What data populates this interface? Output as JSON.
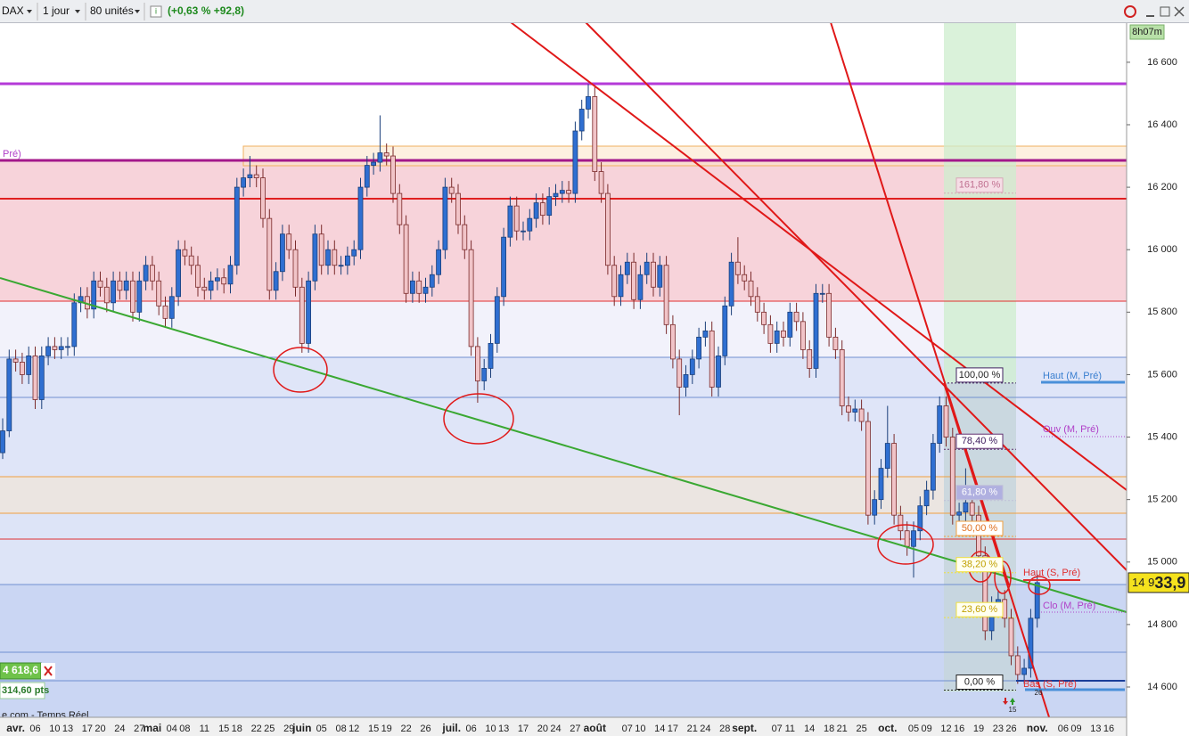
{
  "toolbar": {
    "instrument": "DAX",
    "period": "1 jour",
    "units": "80 unités",
    "change": "(+0,63 % +92,8)"
  },
  "panel": {
    "left_label": "Pré)",
    "price_box": "4 618,6",
    "pts": "314,60 pts",
    "source": "e.com - Temps Réel",
    "timer": "8h07m",
    "markers": [
      "15",
      "26"
    ]
  },
  "chart_data": {
    "type": "candlestick",
    "up_color": "#2f6fd1",
    "down_color": "#f1c4c8",
    "ylim": [
      14503,
      16728
    ],
    "yticks": [
      {
        "value": 14600,
        "label": "14 600"
      },
      {
        "value": 14800,
        "label": "14 800"
      },
      {
        "value": 15000,
        "label": "15 000"
      },
      {
        "value": 15200,
        "label": "15 200"
      },
      {
        "value": 15400,
        "label": "15 400"
      },
      {
        "value": 15600,
        "label": "15 600"
      },
      {
        "value": 15800,
        "label": "15 800"
      },
      {
        "value": 16000,
        "label": "16 000"
      },
      {
        "value": 16200,
        "label": "16 200"
      },
      {
        "value": 16400,
        "label": "16 400"
      },
      {
        "value": 16600,
        "label": "16 600"
      }
    ],
    "last_price": 14933.9,
    "last_price_label": [
      "14 9",
      "33,9"
    ],
    "fib_levels": [
      {
        "label": "161,80 %",
        "value": 16181
      },
      {
        "label": "100,00 %",
        "value": 15573
      },
      {
        "label": "78,40 %",
        "value": 15361
      },
      {
        "label": "61,80 %",
        "value": 15197
      },
      {
        "label": "50,00 %",
        "value": 15082
      },
      {
        "label": "38,20 %",
        "value": 14966
      },
      {
        "label": "23,60 %",
        "value": 14822
      },
      {
        "label": "0,00 %",
        "value": 14590
      }
    ],
    "level_labels": [
      {
        "text": "Haut (M, Pré)",
        "color": "#3a7fd0"
      },
      {
        "text": "Ouv (M, Pré)",
        "color": "#b040c8"
      },
      {
        "text": "Haut (S, Pré)",
        "color": "#e03030"
      },
      {
        "text": "Clo (M, Pré)",
        "color": "#b040c8"
      },
      {
        "text": "Bas (S, Pré)",
        "color": "#e03030"
      }
    ],
    "categories": [
      null,
      null,
      "avr.",
      null,
      null,
      "06",
      null,
      null,
      "10",
      null,
      "13",
      null,
      null,
      "17",
      null,
      "20",
      null,
      null,
      "24",
      null,
      null,
      "27",
      null,
      "mai",
      null,
      null,
      "04",
      null,
      "08",
      null,
      null,
      "11",
      null,
      null,
      "15",
      null,
      "18",
      null,
      null,
      "22",
      null,
      "25",
      null,
      null,
      "29",
      null,
      "juin",
      null,
      null,
      "05",
      null,
      null,
      "08",
      null,
      "12",
      null,
      null,
      "15",
      null,
      "19",
      null,
      null,
      "22",
      null,
      null,
      "26",
      null,
      null,
      null,
      "juil.",
      null,
      null,
      "06",
      null,
      null,
      "10",
      null,
      "13",
      null,
      null,
      "17",
      null,
      null,
      "20",
      null,
      "24",
      null,
      null,
      "27",
      null,
      null,
      "août",
      null,
      null,
      null,
      null,
      "07",
      null,
      "10",
      null,
      null,
      "14",
      null,
      "17",
      null,
      null,
      "21",
      null,
      "24",
      null,
      null,
      "28",
      null,
      null,
      "sept.",
      null,
      null,
      null,
      null,
      "07",
      null,
      "11",
      null,
      null,
      "14",
      null,
      null,
      "18",
      null,
      "21",
      null,
      null,
      "25",
      null,
      null,
      null,
      "oct.",
      null,
      null,
      null,
      "05",
      null,
      "09",
      null,
      null,
      "12",
      null,
      "16",
      null,
      null,
      "19",
      null,
      null,
      "23",
      null,
      "26",
      null,
      null,
      null,
      "nov.",
      null,
      null,
      null,
      "06",
      null,
      "09",
      null,
      null,
      "13",
      null,
      "16",
      null
    ],
    "candles": [
      [
        15350,
        15460,
        15330,
        15420
      ],
      [
        15420,
        15680,
        15400,
        15650
      ],
      [
        15650,
        15680,
        15610,
        15640
      ],
      [
        15640,
        15670,
        15570,
        15600
      ],
      [
        15600,
        15690,
        15570,
        15660
      ],
      [
        15660,
        15690,
        15490,
        15520
      ],
      [
        15520,
        15690,
        15490,
        15660
      ],
      [
        15660,
        15720,
        15630,
        15690
      ],
      [
        15690,
        15720,
        15650,
        15680
      ],
      [
        15680,
        15720,
        15650,
        15690
      ],
      [
        15690,
        15720,
        15660,
        15690
      ],
      [
        15690,
        15860,
        15660,
        15830
      ],
      [
        15830,
        15880,
        15800,
        15850
      ],
      [
        15850,
        15880,
        15780,
        15810
      ],
      [
        15810,
        15930,
        15780,
        15900
      ],
      [
        15900,
        15930,
        15850,
        15880
      ],
      [
        15880,
        15910,
        15800,
        15830
      ],
      [
        15830,
        15930,
        15800,
        15900
      ],
      [
        15900,
        15930,
        15840,
        15870
      ],
      [
        15870,
        15930,
        15840,
        15900
      ],
      [
        15900,
        15930,
        15770,
        15800
      ],
      [
        15800,
        15930,
        15770,
        15900
      ],
      [
        15900,
        15980,
        15870,
        15950
      ],
      [
        15950,
        15980,
        15870,
        15900
      ],
      [
        15900,
        15930,
        15790,
        15820
      ],
      [
        15820,
        15850,
        15750,
        15780
      ],
      [
        15780,
        15880,
        15750,
        15850
      ],
      [
        15850,
        16030,
        15820,
        16000
      ],
      [
        16000,
        16030,
        15950,
        15980
      ],
      [
        15980,
        16010,
        15920,
        15950
      ],
      [
        15950,
        15980,
        15850,
        15880
      ],
      [
        15880,
        15910,
        15840,
        15870
      ],
      [
        15870,
        15930,
        15840,
        15900
      ],
      [
        15900,
        15940,
        15870,
        15910
      ],
      [
        15910,
        15940,
        15860,
        15890
      ],
      [
        15890,
        15980,
        15860,
        15950
      ],
      [
        15950,
        16230,
        15920,
        16200
      ],
      [
        16200,
        16260,
        16170,
        16230
      ],
      [
        16230,
        16300,
        16200,
        16240
      ],
      [
        16240,
        16270,
        16200,
        16230
      ],
      [
        16230,
        16260,
        16070,
        16100
      ],
      [
        16100,
        16130,
        15840,
        15870
      ],
      [
        15870,
        15960,
        15840,
        15930
      ],
      [
        15930,
        16080,
        15900,
        16050
      ],
      [
        16050,
        16080,
        15970,
        16000
      ],
      [
        16000,
        16030,
        15850,
        15880
      ],
      [
        15880,
        15910,
        15670,
        15700
      ],
      [
        15700,
        15930,
        15670,
        15900
      ],
      [
        15900,
        16080,
        15870,
        16050
      ],
      [
        16050,
        16080,
        15920,
        15950
      ],
      [
        15950,
        16030,
        15920,
        16000
      ],
      [
        16000,
        16030,
        15920,
        15950
      ],
      [
        15950,
        15980,
        15920,
        15950
      ],
      [
        15950,
        16010,
        15920,
        15980
      ],
      [
        15980,
        16030,
        15950,
        16000
      ],
      [
        16000,
        16230,
        15970,
        16200
      ],
      [
        16200,
        16300,
        16170,
        16270
      ],
      [
        16270,
        16310,
        16240,
        16280
      ],
      [
        16280,
        16430,
        16250,
        16310
      ],
      [
        16310,
        16340,
        16270,
        16300
      ],
      [
        16300,
        16330,
        16150,
        16180
      ],
      [
        16180,
        16210,
        16050,
        16080
      ],
      [
        16080,
        16110,
        15830,
        15860
      ],
      [
        15860,
        15930,
        15830,
        15900
      ],
      [
        15900,
        15930,
        15830,
        15860
      ],
      [
        15860,
        15910,
        15830,
        15880
      ],
      [
        15880,
        15950,
        15850,
        15920
      ],
      [
        15920,
        16030,
        15890,
        16000
      ],
      [
        16000,
        16230,
        15970,
        16200
      ],
      [
        16200,
        16230,
        16150,
        16180
      ],
      [
        16180,
        16210,
        16050,
        16080
      ],
      [
        16080,
        16110,
        15970,
        16000
      ],
      [
        16000,
        16030,
        15660,
        15690
      ],
      [
        15690,
        15720,
        15510,
        15580
      ],
      [
        15580,
        15650,
        15550,
        15620
      ],
      [
        15620,
        15730,
        15590,
        15700
      ],
      [
        15700,
        15880,
        15670,
        15850
      ],
      [
        15850,
        16070,
        15820,
        16040
      ],
      [
        16040,
        16170,
        16010,
        16140
      ],
      [
        16140,
        16170,
        16030,
        16060
      ],
      [
        16060,
        16090,
        16030,
        16060
      ],
      [
        16060,
        16130,
        16030,
        16100
      ],
      [
        16100,
        16180,
        16070,
        16150
      ],
      [
        16150,
        16180,
        16080,
        16110
      ],
      [
        16110,
        16200,
        16080,
        16170
      ],
      [
        16170,
        16210,
        16140,
        16180
      ],
      [
        16180,
        16220,
        16150,
        16190
      ],
      [
        16190,
        16220,
        16150,
        16180
      ],
      [
        16180,
        16410,
        16150,
        16380
      ],
      [
        16380,
        16480,
        16350,
        16450
      ],
      [
        16450,
        16530,
        16420,
        16490
      ],
      [
        16490,
        16520,
        16220,
        16250
      ],
      [
        16250,
        16280,
        16150,
        16180
      ],
      [
        16180,
        16210,
        15920,
        15950
      ],
      [
        15950,
        15980,
        15820,
        15850
      ],
      [
        15850,
        15950,
        15820,
        15920
      ],
      [
        15920,
        15990,
        15890,
        15960
      ],
      [
        15960,
        15990,
        15810,
        15840
      ],
      [
        15840,
        15950,
        15810,
        15920
      ],
      [
        15920,
        15990,
        15890,
        15960
      ],
      [
        15960,
        15990,
        15850,
        15880
      ],
      [
        15880,
        15980,
        15850,
        15950
      ],
      [
        15950,
        15980,
        15730,
        15760
      ],
      [
        15760,
        15790,
        15620,
        15650
      ],
      [
        15650,
        15680,
        15470,
        15560
      ],
      [
        15560,
        15630,
        15530,
        15600
      ],
      [
        15600,
        15680,
        15570,
        15650
      ],
      [
        15650,
        15750,
        15620,
        15720
      ],
      [
        15720,
        15770,
        15690,
        15740
      ],
      [
        15740,
        15770,
        15530,
        15560
      ],
      [
        15560,
        15690,
        15530,
        15660
      ],
      [
        15660,
        15850,
        15630,
        15820
      ],
      [
        15820,
        15990,
        15790,
        15960
      ],
      [
        15960,
        16040,
        15890,
        15920
      ],
      [
        15920,
        15950,
        15870,
        15900
      ],
      [
        15900,
        15930,
        15820,
        15850
      ],
      [
        15850,
        15880,
        15770,
        15800
      ],
      [
        15800,
        15830,
        15730,
        15760
      ],
      [
        15760,
        15790,
        15670,
        15700
      ],
      [
        15700,
        15770,
        15670,
        15740
      ],
      [
        15740,
        15770,
        15690,
        15720
      ],
      [
        15720,
        15830,
        15690,
        15800
      ],
      [
        15800,
        15830,
        15740,
        15770
      ],
      [
        15770,
        15800,
        15650,
        15680
      ],
      [
        15680,
        15710,
        15590,
        15620
      ],
      [
        15620,
        15890,
        15590,
        15860
      ],
      [
        15860,
        15890,
        15830,
        15860
      ],
      [
        15860,
        15890,
        15690,
        15720
      ],
      [
        15720,
        15750,
        15650,
        15680
      ],
      [
        15680,
        15710,
        15470,
        15500
      ],
      [
        15500,
        15530,
        15450,
        15480
      ],
      [
        15480,
        15520,
        15450,
        15490
      ],
      [
        15490,
        15520,
        15420,
        15450
      ],
      [
        15450,
        15480,
        15120,
        15150
      ],
      [
        15150,
        15230,
        15120,
        15200
      ],
      [
        15200,
        15330,
        15170,
        15300
      ],
      [
        15300,
        15500,
        15270,
        15380
      ],
      [
        15380,
        15410,
        15120,
        15150
      ],
      [
        15150,
        15180,
        15070,
        15100
      ],
      [
        15100,
        15130,
        15020,
        15050
      ],
      [
        15050,
        15130,
        14950,
        15100
      ],
      [
        15100,
        15210,
        15070,
        15180
      ],
      [
        15180,
        15260,
        15150,
        15230
      ],
      [
        15230,
        15410,
        15200,
        15380
      ],
      [
        15380,
        15530,
        15350,
        15500
      ],
      [
        15500,
        15530,
        15370,
        15400
      ],
      [
        15400,
        15430,
        15120,
        15150
      ],
      [
        15150,
        15190,
        15120,
        15160
      ],
      [
        15160,
        15300,
        15130,
        15190
      ],
      [
        15190,
        15220,
        15120,
        15150
      ],
      [
        15150,
        15180,
        14990,
        15020
      ],
      [
        15020,
        15050,
        14750,
        14780
      ],
      [
        14780,
        14890,
        14750,
        14860
      ],
      [
        14860,
        14910,
        14830,
        14880
      ],
      [
        14880,
        14910,
        14790,
        14820
      ],
      [
        14820,
        14850,
        14670,
        14700
      ],
      [
        14700,
        14730,
        14610,
        14640
      ],
      [
        14640,
        14690,
        14610,
        14660
      ],
      [
        14660,
        14850,
        14630,
        14820
      ],
      [
        14820,
        14960,
        14790,
        14934
      ],
      null,
      null,
      null,
      null,
      null,
      null,
      null,
      null,
      null,
      null,
      null,
      null
    ]
  }
}
